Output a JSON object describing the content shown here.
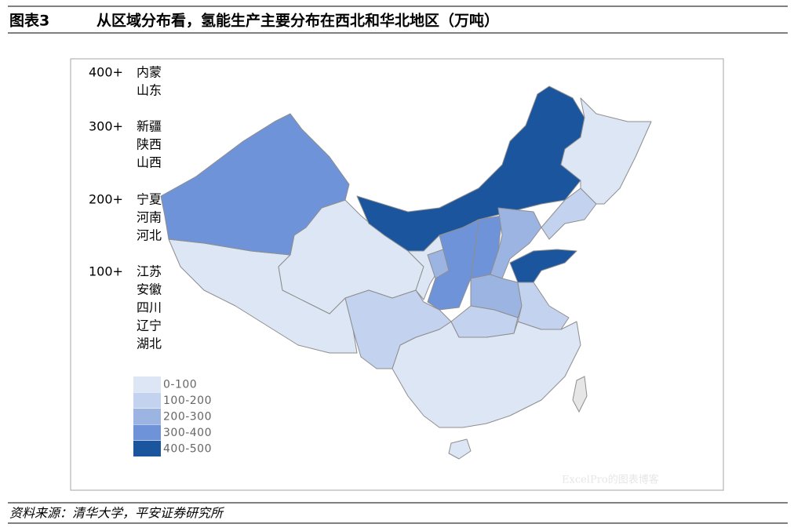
{
  "header": {
    "label": "图表3",
    "title": "从区域分布看，氢能生产主要分布在西北和华北地区（万吨）"
  },
  "groups": [
    {
      "level": "400+",
      "provinces": [
        "内蒙",
        "山东"
      ]
    },
    {
      "level": "300+",
      "provinces": [
        "新疆",
        "陕西",
        "山西"
      ]
    },
    {
      "level": "200+",
      "provinces": [
        "宁夏",
        "河南",
        "河北"
      ]
    },
    {
      "level": "100+",
      "provinces": [
        "江苏",
        "安徽",
        "四川",
        "辽宁",
        "湖北"
      ]
    }
  ],
  "legend": [
    {
      "label": "0-100",
      "color": "#dde6f5"
    },
    {
      "label": "100-200",
      "color": "#c3d3ef"
    },
    {
      "label": "200-300",
      "color": "#9cb4e2"
    },
    {
      "label": "300-400",
      "color": "#6f93d8"
    },
    {
      "label": "400-500",
      "color": "#1b559e"
    }
  ],
  "watermark": "ExcelPro的图表博客",
  "source": "资料来源：清华大学，平安证券研究所"
}
